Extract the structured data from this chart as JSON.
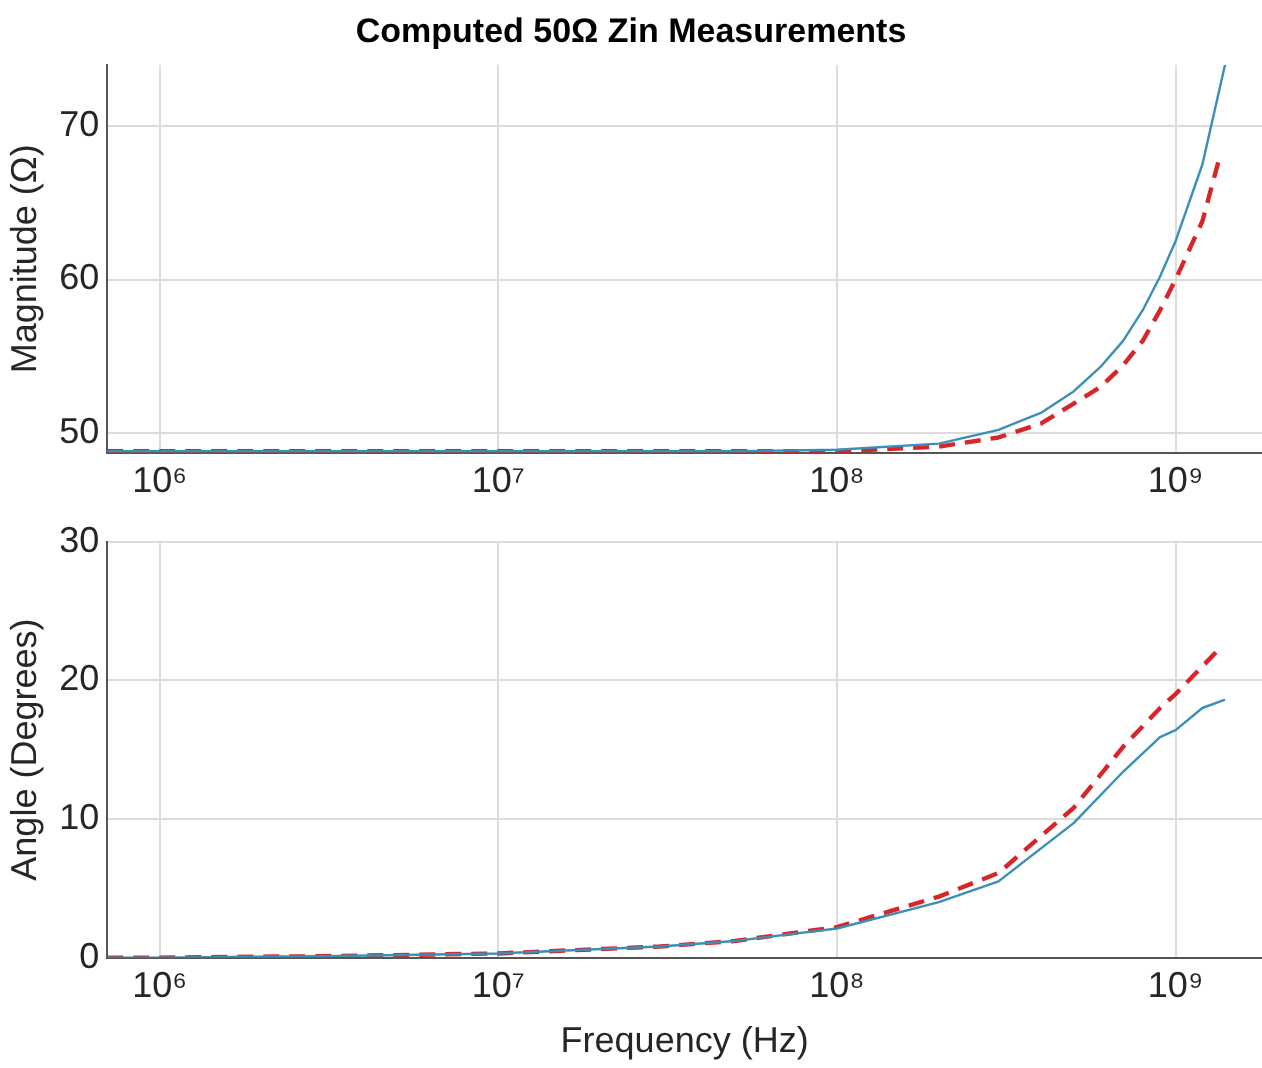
{
  "chart_data": [
    {
      "type": "line",
      "title": "Computed 50Ω Zin Measurements",
      "ylabel": "Magnitude (Ω)",
      "log": "x",
      "grid": true,
      "legend": false,
      "marker": "none",
      "xlim": [
        700000,
        1800000000
      ],
      "xticks": [
        {
          "value": 1000000,
          "label": "10⁶"
        },
        {
          "value": 10000000,
          "label": "10⁷"
        },
        {
          "value": 100000000,
          "label": "10⁸"
        },
        {
          "value": 1000000000,
          "label": "10⁹"
        }
      ],
      "ylim": [
        48.7,
        74
      ],
      "yticks": [
        50,
        60,
        70
      ],
      "series": [
        {
          "color": "#3a8fb7",
          "line_style": "solid",
          "x": [
            700000,
            1000000,
            10000000,
            50000000,
            100000000,
            200000000,
            300000000,
            400000000,
            500000000,
            600000000,
            700000000,
            800000000,
            900000000,
            1000000000,
            1200000000,
            1400000000
          ],
          "values": [
            48.8,
            48.8,
            48.8,
            48.8,
            48.9,
            49.3,
            50.2,
            51.3,
            52.7,
            54.3,
            56,
            58,
            60.2,
            62.5,
            67.5,
            74
          ]
        },
        {
          "color": "#d7262a",
          "line_style": "dashed",
          "x": [
            700000,
            1000000,
            10000000,
            50000000,
            100000000,
            200000000,
            300000000,
            400000000,
            500000000,
            600000000,
            700000000,
            800000000,
            900000000,
            1000000000,
            1200000000,
            1350000000
          ],
          "values": [
            48.8,
            48.8,
            48.8,
            48.8,
            48.8,
            49.1,
            49.7,
            50.6,
            51.9,
            53,
            54.4,
            56,
            58,
            60,
            63.8,
            68
          ]
        }
      ]
    },
    {
      "type": "line",
      "xlabel": "Frequency (Hz)",
      "ylabel": "Angle (Degrees)",
      "log": "x",
      "grid": true,
      "legend": false,
      "marker": "none",
      "xlim": [
        700000,
        1800000000
      ],
      "xticks": [
        {
          "value": 1000000,
          "label": "10⁶"
        },
        {
          "value": 10000000,
          "label": "10⁷"
        },
        {
          "value": 100000000,
          "label": "10⁸"
        },
        {
          "value": 1000000000,
          "label": "10⁹"
        }
      ],
      "ylim": [
        0,
        30
      ],
      "yticks": [
        0,
        10,
        20,
        30
      ],
      "series": [
        {
          "color": "#3a8fb7",
          "line_style": "solid",
          "x": [
            700000,
            1000000,
            3000000,
            10000000,
            30000000,
            50000000,
            100000000,
            200000000,
            300000000,
            500000000,
            700000000,
            900000000,
            1000000000,
            1200000000,
            1400000000
          ],
          "values": [
            0,
            0,
            0.1,
            0.3,
            0.8,
            1.2,
            2.1,
            4,
            5.5,
            9.7,
            13.4,
            15.9,
            16.4,
            18,
            18.6
          ]
        },
        {
          "color": "#d7262a",
          "line_style": "dashed",
          "x": [
            700000,
            1000000,
            3000000,
            10000000,
            30000000,
            50000000,
            100000000,
            200000000,
            300000000,
            500000000,
            700000000,
            900000000,
            1000000000,
            1200000000,
            1350000000
          ],
          "values": [
            0,
            0,
            0.1,
            0.3,
            0.8,
            1.2,
            2.2,
            4.4,
            6.1,
            10.8,
            15.2,
            18,
            19,
            21,
            22.3
          ]
        }
      ]
    }
  ]
}
